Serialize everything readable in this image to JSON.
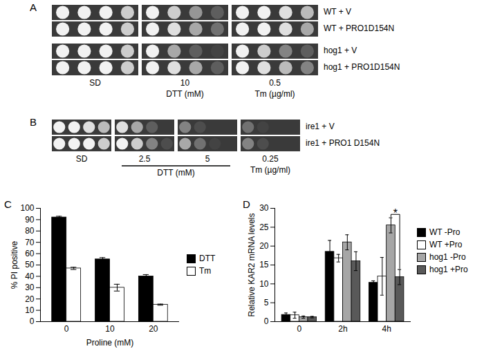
{
  "chart_data": [
    {
      "type": "spot_assay",
      "title": "A",
      "strains": [
        "WT + V",
        "WT + PRO1D154N",
        "hog1 + V",
        "hog1 + PRO1D154N"
      ],
      "conditions": [
        {
          "label": "SD"
        },
        {
          "label": "10",
          "group": "DTT (mM)"
        },
        {
          "label": "0.5",
          "group": "Tm (µg/ml)"
        }
      ],
      "growth": [
        [
          [
            1,
            1,
            1,
            0.8
          ],
          [
            1,
            1,
            1,
            0.8
          ],
          [
            1,
            1,
            1,
            0.8
          ],
          [
            1,
            1,
            1,
            0.8
          ]
        ],
        [
          [
            1,
            0.8,
            0.5,
            0.2
          ],
          [
            1,
            0.9,
            0.6,
            0.3
          ],
          [
            1,
            0.6,
            0.2,
            0.05
          ],
          [
            1,
            0.9,
            0.6,
            0.2
          ]
        ],
        [
          [
            1,
            1,
            0.9,
            0.7
          ],
          [
            1,
            1,
            0.9,
            0.6
          ],
          [
            1,
            0.8,
            0.4,
            0.2
          ],
          [
            1,
            0.9,
            0.7,
            0.4
          ]
        ]
      ]
    },
    {
      "type": "spot_assay",
      "title": "B",
      "strains": [
        "ire1 + V",
        "ire1 + PRO1 D154N"
      ],
      "conditions": [
        {
          "label": "SD"
        },
        {
          "label": "2.5",
          "group": "DTT (mM)"
        },
        {
          "label": "5",
          "group": "DTT (mM)"
        },
        {
          "label": "0.25",
          "group": "Tm (µg/ml)"
        }
      ],
      "growth": [
        [
          [
            1,
            1,
            0.9,
            0.7
          ],
          [
            1,
            1,
            1,
            0.8
          ]
        ],
        [
          [
            0.9,
            0.6,
            0.2,
            0
          ],
          [
            1,
            0.8,
            0.4,
            0.1
          ]
        ],
        [
          [
            0.4,
            0.1,
            0,
            0
          ],
          [
            0.6,
            0.3,
            0.05,
            0
          ]
        ],
        [
          [
            0.3,
            0.05,
            0,
            0
          ],
          [
            0.4,
            0.1,
            0,
            0
          ]
        ]
      ]
    },
    {
      "type": "bar",
      "title": "C",
      "categories": [
        0,
        10,
        20
      ],
      "x_label": "Proline (mM)",
      "y_label": "% PI positive",
      "ylim": [
        0,
        100
      ],
      "yticks": [
        0,
        10,
        20,
        30,
        40,
        50,
        60,
        70,
        80,
        90,
        100
      ],
      "legend": "right",
      "series": [
        {
          "name": "DTT",
          "color": "#000000",
          "values": [
            92,
            55,
            40
          ],
          "errors": [
            1,
            1.5,
            1.5
          ]
        },
        {
          "name": "Tm",
          "color": "#ffffff",
          "values": [
            47,
            30,
            15
          ],
          "errors": [
            1,
            3,
            0.5
          ]
        }
      ]
    },
    {
      "type": "bar",
      "title": "D",
      "categories": [
        "0",
        "2h",
        "4h"
      ],
      "y_label": "Relative KAR2 mRNA levels",
      "ylim": [
        0,
        30
      ],
      "yticks": [
        0,
        5,
        10,
        15,
        20,
        25,
        30
      ],
      "legend": "top right",
      "series": [
        {
          "name": "WT -Pro",
          "color": "#000000",
          "values": [
            1.8,
            18.5,
            10.3
          ],
          "errors": [
            0.5,
            3,
            0.5
          ]
        },
        {
          "name": "WT +Pro",
          "color": "#ffffff",
          "values": [
            1.7,
            16.8,
            12
          ],
          "errors": [
            0.8,
            1,
            5
          ]
        },
        {
          "name": "hog1 -Pro",
          "color": "#a6a6a6",
          "values": [
            1.2,
            21,
            25.5
          ],
          "errors": [
            0.3,
            2,
            2
          ]
        },
        {
          "name": "hog1 +Pro",
          "color": "#595959",
          "values": [
            1.2,
            16,
            11.8
          ],
          "errors": [
            0.2,
            2.5,
            2
          ]
        }
      ],
      "annotations": [
        {
          "text": "*",
          "category": "4h",
          "between": [
            "hog1 -Pro",
            "hog1 +Pro"
          ]
        }
      ]
    }
  ]
}
